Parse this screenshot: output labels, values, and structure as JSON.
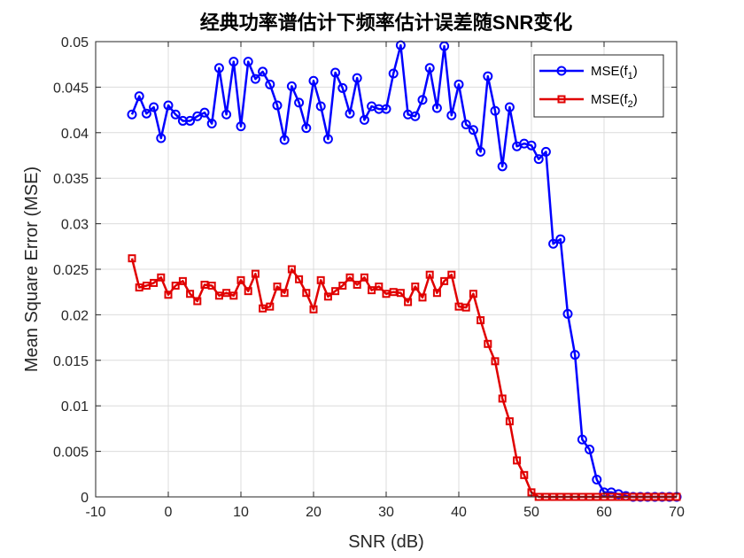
{
  "chart_data": {
    "type": "line",
    "title": "经典功率谱估计下频率估计误差随SNR变化",
    "title_parts": [
      "经典功率谱估计下频率估计误差随",
      "SNR",
      "变化"
    ],
    "xlabel": "SNR (dB)",
    "ylabel": "Mean Square Error (MSE)",
    "xlim": [
      -10,
      70
    ],
    "ylim": [
      0,
      0.05
    ],
    "xticks": [
      -10,
      0,
      10,
      20,
      30,
      40,
      50,
      60,
      70
    ],
    "xtick_labels": [
      "-10",
      "0",
      "10",
      "20",
      "30",
      "40",
      "50",
      "60",
      "70"
    ],
    "yticks": [
      0,
      0.005,
      0.01,
      0.015,
      0.02,
      0.025,
      0.03,
      0.035,
      0.04,
      0.045,
      0.05
    ],
    "ytick_labels": [
      "0",
      "0.005",
      "0.01",
      "0.015",
      "0.02",
      "0.025",
      "0.03",
      "0.035",
      "0.04",
      "0.045",
      "0.05"
    ],
    "grid": true,
    "legend_position": "top-right",
    "x_start": -5,
    "x_step": 1,
    "series": [
      {
        "name": "MSE(f1)",
        "legend_main": "MSE(f",
        "legend_sub": "1",
        "legend_tail": ")",
        "color": "#0000ff",
        "marker": "circle",
        "values": [
          0.042,
          0.044,
          0.0421,
          0.0428,
          0.0394,
          0.043,
          0.042,
          0.0413,
          0.0413,
          0.0418,
          0.0422,
          0.041,
          0.0471,
          0.042,
          0.0478,
          0.0407,
          0.0478,
          0.0459,
          0.0467,
          0.0453,
          0.043,
          0.0392,
          0.0451,
          0.0433,
          0.0405,
          0.0457,
          0.0429,
          0.0393,
          0.0466,
          0.0449,
          0.0421,
          0.046,
          0.0414,
          0.0429,
          0.0426,
          0.0426,
          0.0465,
          0.0496,
          0.042,
          0.0418,
          0.0436,
          0.0471,
          0.0427,
          0.0495,
          0.0419,
          0.0453,
          0.0409,
          0.0403,
          0.0379,
          0.0462,
          0.0424,
          0.0363,
          0.0428,
          0.0385,
          0.0388,
          0.0386,
          0.0371,
          0.0379,
          0.0278,
          0.0283,
          0.0201,
          0.0156,
          0.0063,
          0.0052,
          0.0019,
          0.0005,
          0.0005,
          0.0003,
          0.0001,
          0.0,
          0.0,
          0.0,
          0.0,
          0.0,
          0.0,
          0.0
        ]
      },
      {
        "name": "MSE(f2)",
        "legend_main": "MSE(f",
        "legend_sub": "2",
        "legend_tail": ")",
        "color": "#e00000",
        "marker": "square",
        "values": [
          0.0262,
          0.023,
          0.0232,
          0.0235,
          0.0241,
          0.0222,
          0.0232,
          0.0237,
          0.0223,
          0.0215,
          0.0233,
          0.0232,
          0.0221,
          0.0224,
          0.0221,
          0.0238,
          0.0226,
          0.0245,
          0.0207,
          0.0209,
          0.0231,
          0.0224,
          0.025,
          0.0239,
          0.0224,
          0.0206,
          0.0238,
          0.022,
          0.0226,
          0.0232,
          0.0241,
          0.0233,
          0.0241,
          0.0227,
          0.0231,
          0.0223,
          0.0225,
          0.0224,
          0.0214,
          0.0231,
          0.0219,
          0.0244,
          0.0224,
          0.0237,
          0.0244,
          0.0209,
          0.0208,
          0.0223,
          0.0194,
          0.0168,
          0.0149,
          0.0108,
          0.0083,
          0.004,
          0.0024,
          0.0005,
          0.0,
          0.0,
          0.0,
          0.0,
          0.0,
          0.0,
          0.0,
          0.0,
          0.0,
          0.0,
          0.0,
          0.0,
          0.0,
          0.0,
          0.0,
          0.0,
          0.0,
          0.0,
          0.0,
          0.0
        ]
      }
    ]
  }
}
